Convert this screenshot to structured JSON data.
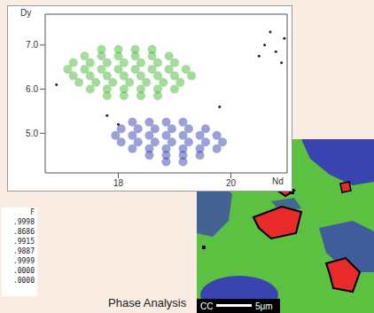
{
  "chart_data": {
    "type": "scatter",
    "x_label": "Nd",
    "y_label": "Dy",
    "xlim": [
      16.7,
      21.0
    ],
    "ylim": [
      4.1,
      7.7
    ],
    "xticks": [
      18,
      20
    ],
    "yticks": [
      {
        "value": 5,
        "label": "5.0"
      },
      {
        "value": 6,
        "label": "6.0"
      },
      {
        "value": 7,
        "label": "7.0"
      }
    ],
    "grid": false,
    "series": [
      {
        "color": "#4cb83a",
        "x": [
          17.7,
          18.0,
          18.3,
          18.6,
          17.4,
          17.7,
          18.0,
          18.3,
          18.6,
          18.9,
          17.2,
          17.5,
          17.8,
          18.1,
          18.4,
          18.7,
          19.0,
          17.1,
          17.4,
          17.7,
          18.0,
          18.3,
          18.6,
          18.9,
          19.2,
          17.2,
          17.5,
          17.8,
          18.1,
          18.4,
          18.7,
          19.0,
          19.3,
          17.3,
          17.6,
          17.9,
          18.2,
          18.5,
          18.8,
          19.1,
          17.5,
          17.8,
          18.1,
          18.4,
          18.7,
          19.0,
          17.8,
          18.1,
          18.4,
          18.7
        ],
        "values": [
          6.9,
          6.9,
          6.9,
          6.9,
          6.75,
          6.75,
          6.75,
          6.75,
          6.75,
          6.75,
          6.6,
          6.6,
          6.6,
          6.6,
          6.6,
          6.6,
          6.6,
          6.45,
          6.45,
          6.45,
          6.45,
          6.45,
          6.45,
          6.45,
          6.45,
          6.3,
          6.3,
          6.3,
          6.3,
          6.3,
          6.3,
          6.3,
          6.3,
          6.15,
          6.15,
          6.15,
          6.15,
          6.15,
          6.15,
          6.15,
          6.0,
          6.0,
          6.0,
          6.0,
          6.0,
          6.0,
          5.85,
          5.85,
          5.85,
          5.85
        ]
      },
      {
        "color": "#3a44b0",
        "x": [
          18.25,
          18.55,
          18.85,
          19.15,
          18.05,
          18.35,
          18.65,
          18.95,
          19.25,
          19.55,
          17.95,
          18.25,
          18.55,
          18.85,
          19.15,
          19.45,
          19.75,
          18.05,
          18.35,
          18.65,
          18.95,
          19.25,
          19.55,
          19.85,
          18.25,
          18.55,
          18.85,
          19.15,
          19.45,
          19.75,
          18.55,
          18.85,
          19.15,
          19.45,
          18.85,
          19.15
        ],
        "values": [
          5.25,
          5.25,
          5.25,
          5.25,
          5.1,
          5.1,
          5.1,
          5.1,
          5.1,
          5.1,
          4.95,
          4.95,
          4.95,
          4.95,
          4.95,
          4.95,
          4.95,
          4.8,
          4.8,
          4.8,
          4.8,
          4.8,
          4.8,
          4.8,
          4.65,
          4.65,
          4.65,
          4.65,
          4.65,
          4.65,
          4.5,
          4.5,
          4.5,
          4.5,
          4.35,
          4.35
        ]
      },
      {
        "color": "#222222",
        "x": [
          20.6,
          20.8,
          20.95,
          20.5,
          20.9,
          20.7,
          18.0,
          17.8,
          19.8,
          16.9
        ],
        "values": [
          7.0,
          6.85,
          7.15,
          6.75,
          6.6,
          7.3,
          5.2,
          5.4,
          5.6,
          6.1
        ]
      }
    ]
  },
  "table": {
    "header": "F",
    "rows": [
      ".9998",
      ".8686",
      ".9915",
      ".9887",
      ".9999",
      ".0000",
      ".0000"
    ]
  },
  "phase_map": {
    "label": "CC",
    "scale_bar": "5μm"
  },
  "caption": "Phase Analysis"
}
